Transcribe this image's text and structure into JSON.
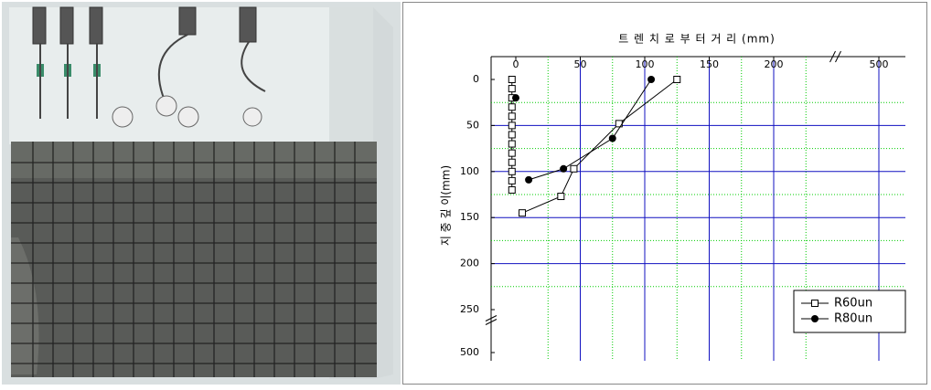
{
  "chart_data": {
    "type": "scatter",
    "x_label": "트 렌 치 로 부 터 거 리 (mm)",
    "y_label": "지 중 깊 이(mm)",
    "xlim": [
      -20,
      500
    ],
    "ylim": [
      0,
      500
    ],
    "xticks": [
      0,
      50,
      100,
      150,
      200,
      500
    ],
    "yticks": [
      0,
      50,
      100,
      150,
      200,
      250,
      500
    ],
    "xminor": [
      25,
      75,
      125,
      175,
      225
    ],
    "yminor": [
      25,
      75,
      125,
      175,
      225
    ],
    "grid": true,
    "legend": "lower right",
    "series": [
      {
        "name": "R60un",
        "marker": "square",
        "color": "#000000",
        "x": [
          125,
          80,
          45,
          35,
          5,
          null,
          -3,
          -3,
          -3,
          -3,
          -3,
          -3,
          -3,
          -3,
          -3,
          -3,
          -3,
          -3,
          -3
        ],
        "y": [
          0,
          48,
          97,
          127,
          145,
          null,
          0,
          10,
          20,
          30,
          40,
          50,
          60,
          70,
          80,
          90,
          100,
          110,
          120
        ]
      },
      {
        "name": "R80un",
        "marker": "circle",
        "color": "#000000",
        "x": [
          105,
          75,
          37,
          10,
          null,
          0
        ],
        "y": [
          0,
          64,
          97,
          109,
          null,
          20
        ]
      }
    ]
  }
}
